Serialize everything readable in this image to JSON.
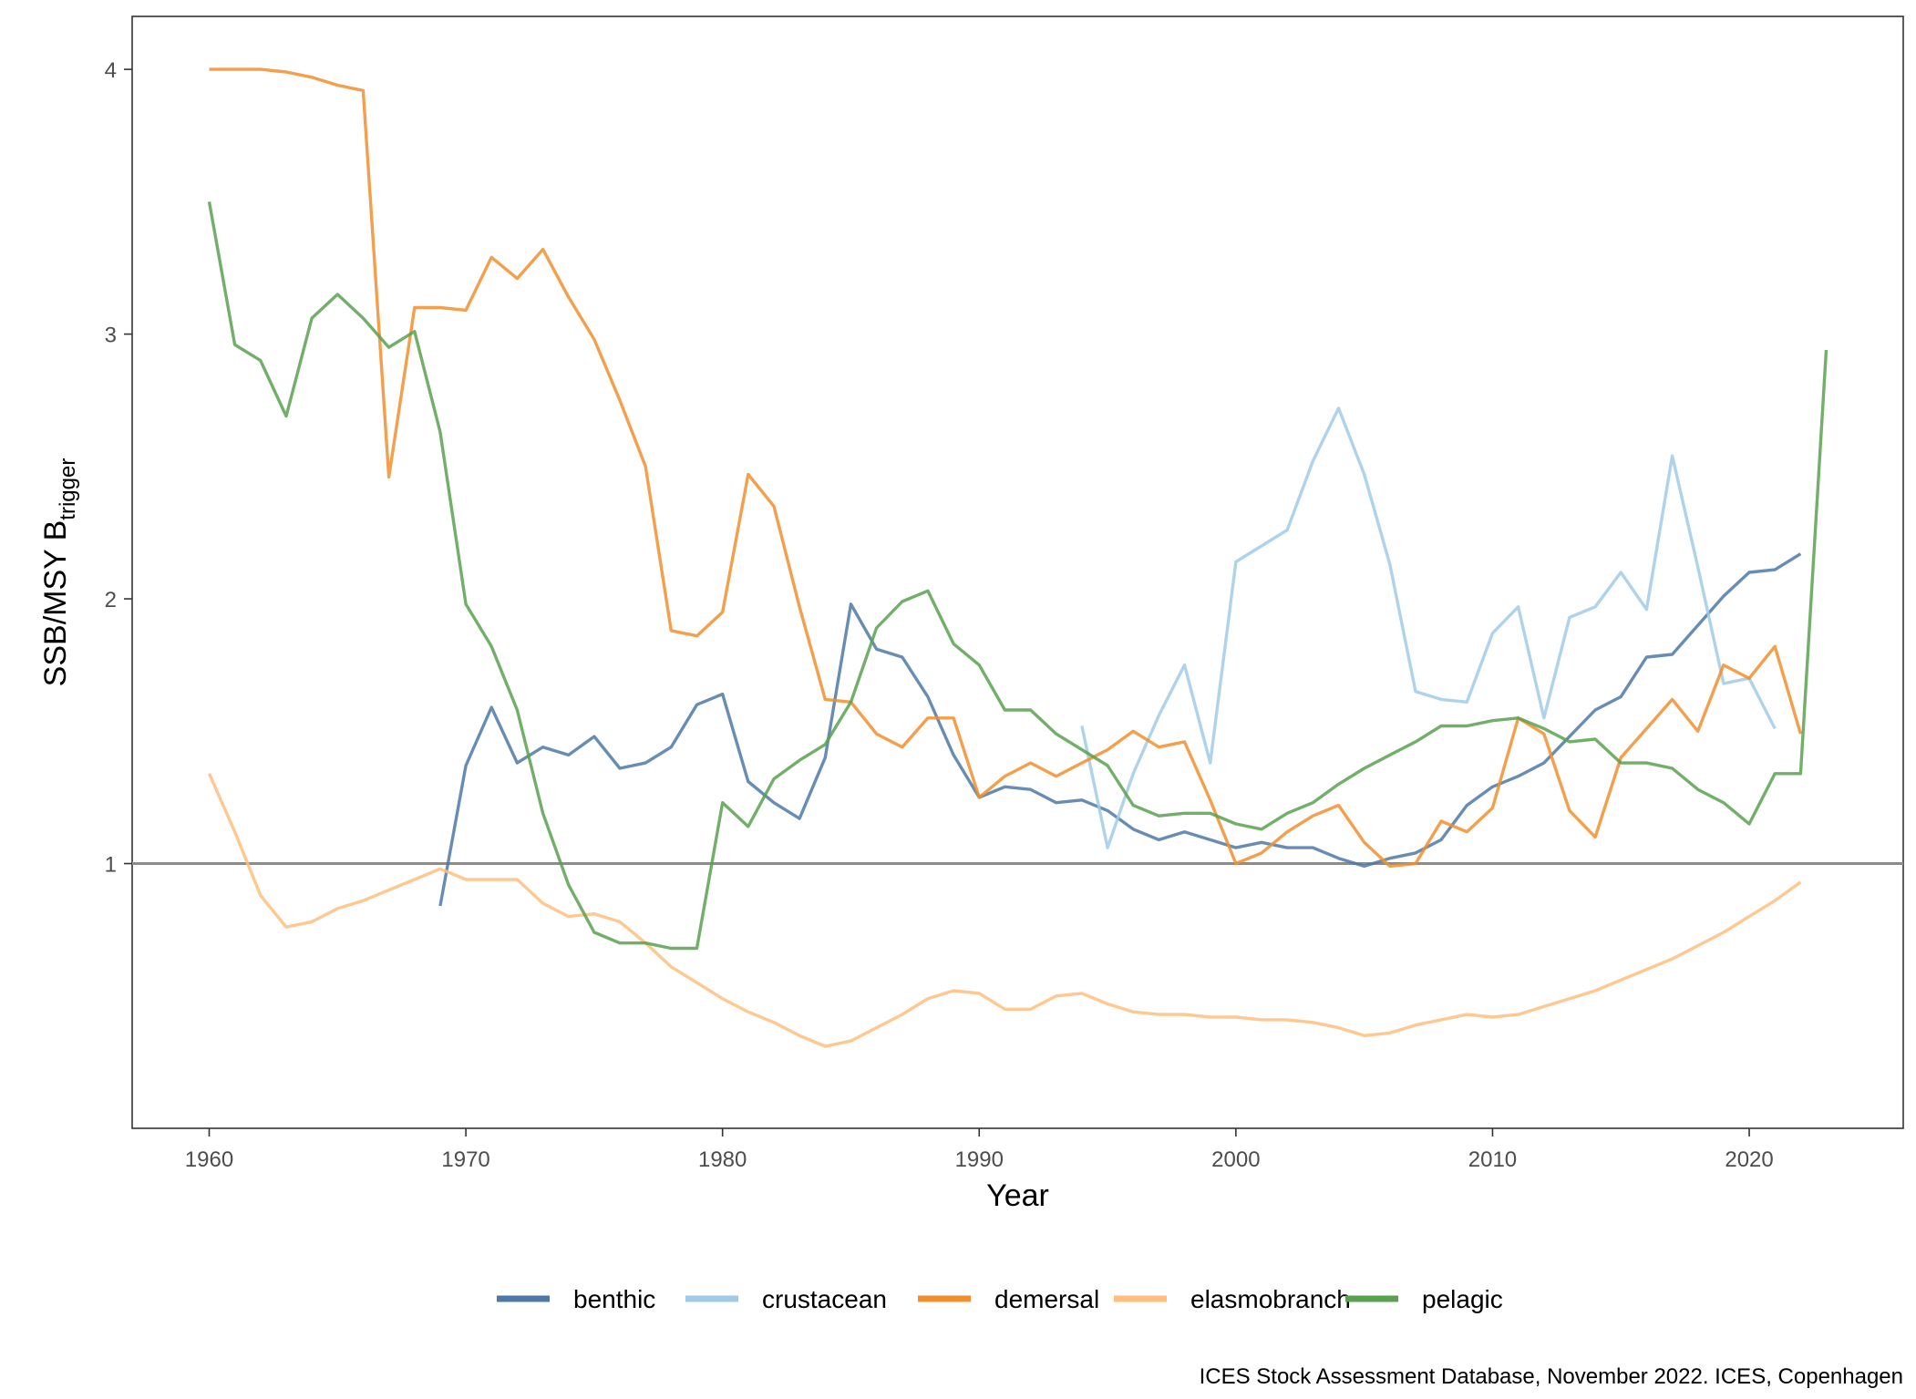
{
  "chart_data": {
    "type": "line",
    "xlabel": "Year",
    "ylabel_main": "SSB/MSY B",
    "ylabel_sub": "trigger",
    "xlim": [
      1957,
      2026
    ],
    "ylim": [
      0.0,
      4.2
    ],
    "x_ticks": [
      1960,
      1970,
      1980,
      1990,
      2000,
      2010,
      2020
    ],
    "y_ticks": [
      1,
      2,
      3,
      4
    ],
    "reference_line": {
      "y": 1,
      "color": "#8c8c8c"
    },
    "grid": false,
    "legend_position": "bottom",
    "caption": "ICES Stock Assessment Database, November 2022. ICES, Copenhagen",
    "series": [
      {
        "name": "benthic",
        "color": "#4e79a7",
        "x": [
          1969,
          1970,
          1971,
          1972,
          1973,
          1974,
          1975,
          1976,
          1977,
          1978,
          1979,
          1980,
          1981,
          1982,
          1983,
          1984,
          1985,
          1986,
          1987,
          1988,
          1989,
          1990,
          1991,
          1992,
          1993,
          1994,
          1995,
          1996,
          1997,
          1998,
          1999,
          2000,
          2001,
          2002,
          2003,
          2004,
          2005,
          2006,
          2007,
          2008,
          2009,
          2010,
          2011,
          2012,
          2013,
          2014,
          2015,
          2016,
          2017,
          2018,
          2019,
          2020,
          2021,
          2022
        ],
        "y": [
          0.84,
          1.37,
          1.59,
          1.38,
          1.44,
          1.41,
          1.48,
          1.36,
          1.38,
          1.44,
          1.6,
          1.64,
          1.31,
          1.23,
          1.17,
          1.4,
          1.98,
          1.81,
          1.78,
          1.63,
          1.41,
          1.25,
          1.29,
          1.28,
          1.23,
          1.24,
          1.2,
          1.13,
          1.09,
          1.12,
          1.09,
          1.06,
          1.08,
          1.06,
          1.06,
          1.02,
          0.99,
          1.02,
          1.04,
          1.09,
          1.22,
          1.29,
          1.33,
          1.38,
          1.48,
          1.58,
          1.63,
          1.78,
          1.79,
          1.9,
          2.01,
          2.1,
          2.11,
          2.17
        ]
      },
      {
        "name": "crustacean",
        "color": "#a0cbe8",
        "x": [
          1994,
          1995,
          1996,
          1997,
          1998,
          1999,
          2000,
          2001,
          2002,
          2003,
          2004,
          2005,
          2006,
          2007,
          2008,
          2009,
          2010,
          2011,
          2012,
          2013,
          2014,
          2015,
          2016,
          2017,
          2018,
          2019,
          2020,
          2021
        ],
        "y": [
          1.52,
          1.06,
          1.34,
          1.56,
          1.75,
          1.38,
          2.14,
          2.2,
          2.26,
          2.52,
          2.72,
          2.47,
          2.13,
          1.65,
          1.62,
          1.61,
          1.87,
          1.97,
          1.55,
          1.93,
          1.97,
          2.1,
          1.96,
          2.54,
          2.12,
          1.68,
          1.7,
          1.51
        ]
      },
      {
        "name": "demersal",
        "color": "#f28e2b",
        "x": [
          1960,
          1961,
          1962,
          1963,
          1964,
          1965,
          1966,
          1967,
          1968,
          1969,
          1970,
          1971,
          1972,
          1973,
          1974,
          1975,
          1976,
          1977,
          1978,
          1979,
          1980,
          1981,
          1982,
          1983,
          1984,
          1985,
          1986,
          1987,
          1988,
          1989,
          1990,
          1991,
          1992,
          1993,
          1994,
          1995,
          1996,
          1997,
          1998,
          1999,
          2000,
          2001,
          2002,
          2003,
          2004,
          2005,
          2006,
          2007,
          2008,
          2009,
          2010,
          2011,
          2012,
          2013,
          2014,
          2015,
          2016,
          2017,
          2018,
          2019,
          2020,
          2021,
          2022
        ],
        "y": [
          4.0,
          4.0,
          4.0,
          3.99,
          3.97,
          3.94,
          3.92,
          2.46,
          3.1,
          3.1,
          3.09,
          3.29,
          3.21,
          3.32,
          3.14,
          2.98,
          2.75,
          2.5,
          1.88,
          1.86,
          1.95,
          2.47,
          2.35,
          1.97,
          1.62,
          1.61,
          1.49,
          1.44,
          1.55,
          1.55,
          1.25,
          1.33,
          1.38,
          1.33,
          1.38,
          1.43,
          1.5,
          1.44,
          1.46,
          1.24,
          1.0,
          1.04,
          1.12,
          1.18,
          1.22,
          1.08,
          0.99,
          1.0,
          1.16,
          1.12,
          1.21,
          1.55,
          1.49,
          1.2,
          1.1,
          1.4,
          1.51,
          1.62,
          1.5,
          1.75,
          1.7,
          1.82,
          1.49
        ]
      },
      {
        "name": "elasmobranch",
        "color": "#ffbe7d",
        "x": [
          1960,
          1961,
          1962,
          1963,
          1964,
          1965,
          1966,
          1967,
          1968,
          1969,
          1970,
          1971,
          1972,
          1973,
          1974,
          1975,
          1976,
          1977,
          1978,
          1979,
          1980,
          1981,
          1982,
          1983,
          1984,
          1985,
          1986,
          1987,
          1988,
          1989,
          1990,
          1991,
          1992,
          1993,
          1994,
          1995,
          1996,
          1997,
          1998,
          1999,
          2000,
          2001,
          2002,
          2003,
          2004,
          2005,
          2006,
          2007,
          2008,
          2009,
          2010,
          2011,
          2012,
          2013,
          2014,
          2015,
          2016,
          2017,
          2018,
          2019,
          2020,
          2021,
          2022
        ],
        "y": [
          1.34,
          1.12,
          0.88,
          0.76,
          0.78,
          0.83,
          0.86,
          0.9,
          0.94,
          0.98,
          0.94,
          0.94,
          0.94,
          0.85,
          0.8,
          0.81,
          0.78,
          0.7,
          0.61,
          0.55,
          0.49,
          0.44,
          0.4,
          0.35,
          0.31,
          0.33,
          0.38,
          0.43,
          0.49,
          0.52,
          0.51,
          0.45,
          0.45,
          0.5,
          0.51,
          0.47,
          0.44,
          0.43,
          0.43,
          0.42,
          0.42,
          0.41,
          0.41,
          0.4,
          0.38,
          0.35,
          0.36,
          0.39,
          0.41,
          0.43,
          0.42,
          0.43,
          0.46,
          0.49,
          0.52,
          0.56,
          0.6,
          0.64,
          0.69,
          0.74,
          0.8,
          0.86,
          0.93
        ]
      },
      {
        "name": "pelagic",
        "color": "#59a14f",
        "x": [
          1960,
          1961,
          1962,
          1963,
          1964,
          1965,
          1966,
          1967,
          1968,
          1969,
          1970,
          1971,
          1972,
          1973,
          1974,
          1975,
          1976,
          1977,
          1978,
          1979,
          1980,
          1981,
          1982,
          1983,
          1984,
          1985,
          1986,
          1987,
          1988,
          1989,
          1990,
          1991,
          1992,
          1993,
          1994,
          1995,
          1996,
          1997,
          1998,
          1999,
          2000,
          2001,
          2002,
          2003,
          2004,
          2005,
          2006,
          2007,
          2008,
          2009,
          2010,
          2011,
          2012,
          2013,
          2014,
          2015,
          2016,
          2017,
          2018,
          2019,
          2020,
          2021,
          2022,
          2023
        ],
        "y": [
          3.5,
          2.96,
          2.9,
          2.69,
          3.06,
          3.15,
          3.06,
          2.95,
          3.01,
          2.63,
          1.98,
          1.82,
          1.58,
          1.19,
          0.92,
          0.74,
          0.7,
          0.7,
          0.68,
          0.68,
          1.23,
          1.14,
          1.32,
          1.39,
          1.45,
          1.61,
          1.89,
          1.99,
          2.03,
          1.83,
          1.75,
          1.58,
          1.58,
          1.49,
          1.43,
          1.37,
          1.22,
          1.18,
          1.19,
          1.19,
          1.15,
          1.13,
          1.19,
          1.23,
          1.3,
          1.36,
          1.41,
          1.46,
          1.52,
          1.52,
          1.54,
          1.55,
          1.51,
          1.46,
          1.47,
          1.38,
          1.38,
          1.36,
          1.28,
          1.23,
          1.15,
          1.34,
          1.34,
          2.94
        ]
      }
    ]
  }
}
